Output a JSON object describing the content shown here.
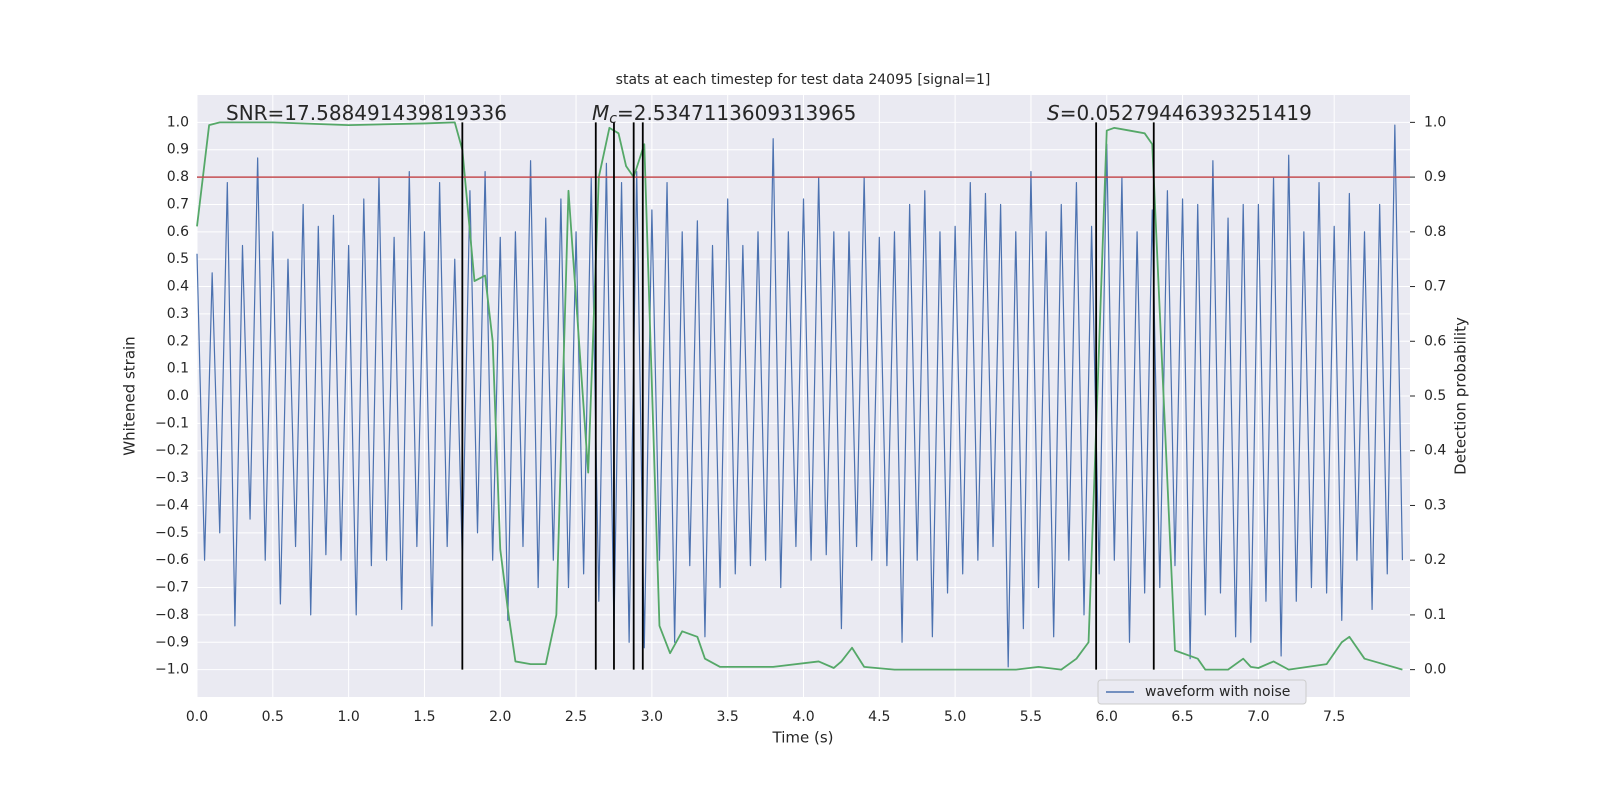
{
  "chart_data": {
    "type": "line",
    "title": "stats at each timestep for test data 24095 [signal=1]",
    "xlabel": "Time (s)",
    "ylabel": "Whitened strain",
    "y2label": "Detection probability",
    "xlim": [
      0,
      8.0
    ],
    "ylim": [
      -1.1,
      1.1
    ],
    "y2lim": [
      -0.05,
      1.05
    ],
    "xticks": [
      {
        "value": 0,
        "label": "0.0"
      },
      {
        "value": 0.5,
        "label": "0.5"
      },
      {
        "value": 1,
        "label": "1.0"
      },
      {
        "value": 1.5,
        "label": "1.5"
      },
      {
        "value": 2,
        "label": "2.0"
      },
      {
        "value": 2.5,
        "label": "2.5"
      },
      {
        "value": 3,
        "label": "3.0"
      },
      {
        "value": 3.5,
        "label": "3.5"
      },
      {
        "value": 4,
        "label": "4.0"
      },
      {
        "value": 4.5,
        "label": "4.5"
      },
      {
        "value": 5,
        "label": "5.0"
      },
      {
        "value": 5.5,
        "label": "5.5"
      },
      {
        "value": 6,
        "label": "6.0"
      },
      {
        "value": 6.5,
        "label": "6.5"
      },
      {
        "value": 7,
        "label": "7.0"
      },
      {
        "value": 7.5,
        "label": "7.5"
      }
    ],
    "yticks": [
      {
        "value": -1,
        "label": "−1.0"
      },
      {
        "value": -0.9,
        "label": "−0.9"
      },
      {
        "value": -0.8,
        "label": "−0.8"
      },
      {
        "value": -0.7,
        "label": "−0.7"
      },
      {
        "value": -0.6,
        "label": "−0.6"
      },
      {
        "value": -0.5,
        "label": "−0.5"
      },
      {
        "value": -0.4,
        "label": "−0.4"
      },
      {
        "value": -0.3,
        "label": "−0.3"
      },
      {
        "value": -0.2,
        "label": "−0.2"
      },
      {
        "value": -0.1,
        "label": "−0.1"
      },
      {
        "value": 0,
        "label": "0.0"
      },
      {
        "value": 0.1,
        "label": "0.1"
      },
      {
        "value": 0.2,
        "label": "0.2"
      },
      {
        "value": 0.3,
        "label": "0.3"
      },
      {
        "value": 0.4,
        "label": "0.4"
      },
      {
        "value": 0.5,
        "label": "0.5"
      },
      {
        "value": 0.6,
        "label": "0.6"
      },
      {
        "value": 0.7,
        "label": "0.7"
      },
      {
        "value": 0.8,
        "label": "0.8"
      },
      {
        "value": 0.9,
        "label": "0.9"
      },
      {
        "value": 1,
        "label": "1.0"
      }
    ],
    "y2ticks": [
      {
        "value": 0,
        "label": "0.0"
      },
      {
        "value": 0.1,
        "label": "0.1"
      },
      {
        "value": 0.2,
        "label": "0.2"
      },
      {
        "value": 0.3,
        "label": "0.3"
      },
      {
        "value": 0.4,
        "label": "0.4"
      },
      {
        "value": 0.5,
        "label": "0.5"
      },
      {
        "value": 0.6,
        "label": "0.6"
      },
      {
        "value": 0.7,
        "label": "0.7"
      },
      {
        "value": 0.8,
        "label": "0.8"
      },
      {
        "value": 0.9,
        "label": "0.9"
      },
      {
        "value": 1,
        "label": "1.0"
      }
    ],
    "grid": true,
    "legend": "lower right",
    "series": [
      {
        "name": "waveform with noise",
        "color": "#4c72b0",
        "x": [
          0,
          0.05,
          0.1,
          0.15,
          0.2,
          0.25,
          0.3,
          0.35,
          0.4,
          0.45,
          0.5,
          0.55,
          0.6,
          0.65,
          0.7,
          0.75,
          0.8,
          0.85,
          0.9,
          0.95,
          1,
          1.05,
          1.1,
          1.15,
          1.2,
          1.25,
          1.3,
          1.35,
          1.4,
          1.45,
          1.5,
          1.55,
          1.6,
          1.65,
          1.7,
          1.75,
          1.8,
          1.85,
          1.9,
          1.95,
          2,
          2.05,
          2.1,
          2.15,
          2.2,
          2.25,
          2.3,
          2.35,
          2.4,
          2.45,
          2.5,
          2.55,
          2.6,
          2.65,
          2.7,
          2.75,
          2.8,
          2.85,
          2.9,
          2.95,
          3,
          3.05,
          3.1,
          3.15,
          3.2,
          3.25,
          3.3,
          3.35,
          3.4,
          3.45,
          3.5,
          3.55,
          3.6,
          3.65,
          3.7,
          3.75,
          3.8,
          3.85,
          3.9,
          3.95,
          4,
          4.05,
          4.1,
          4.15,
          4.2,
          4.25,
          4.3,
          4.35,
          4.4,
          4.45,
          4.5,
          4.55,
          4.6,
          4.65,
          4.7,
          4.75,
          4.8,
          4.85,
          4.9,
          4.95,
          5,
          5.05,
          5.1,
          5.15,
          5.2,
          5.25,
          5.3,
          5.35,
          5.4,
          5.45,
          5.5,
          5.55,
          5.6,
          5.65,
          5.7,
          5.75,
          5.8,
          5.85,
          5.9,
          5.95,
          6,
          6.05,
          6.1,
          6.15,
          6.2,
          6.25,
          6.3,
          6.35,
          6.4,
          6.45,
          6.5,
          6.55,
          6.6,
          6.65,
          6.7,
          6.75,
          6.8,
          6.85,
          6.9,
          6.95,
          7,
          7.05,
          7.1,
          7.15,
          7.2,
          7.25,
          7.3,
          7.35,
          7.4,
          7.45,
          7.5,
          7.55,
          7.6,
          7.65,
          7.7,
          7.75,
          7.8,
          7.85,
          7.9,
          7.95
        ],
        "values": [
          0.52,
          -0.6,
          0.45,
          -0.5,
          0.78,
          -0.84,
          0.55,
          -0.45,
          0.87,
          -0.6,
          0.6,
          -0.76,
          0.5,
          -0.55,
          0.7,
          -0.8,
          0.62,
          -0.58,
          0.66,
          -0.6,
          0.55,
          -0.8,
          0.72,
          -0.62,
          0.8,
          -0.6,
          0.58,
          -0.78,
          0.82,
          -0.55,
          0.6,
          -0.84,
          0.78,
          -0.55,
          0.5,
          -0.6,
          0.75,
          -0.5,
          0.82,
          -0.6,
          0.58,
          -0.82,
          0.6,
          -0.55,
          0.86,
          -0.7,
          0.65,
          -0.6,
          0.72,
          -0.7,
          0.6,
          -0.65,
          0.8,
          -0.75,
          0.85,
          -0.85,
          0.78,
          -0.9,
          0.82,
          -0.92,
          0.68,
          -0.6,
          0.78,
          -0.9,
          0.6,
          -0.62,
          0.64,
          -0.88,
          0.55,
          -0.7,
          0.72,
          -0.65,
          0.55,
          -0.62,
          0.6,
          -0.6,
          0.94,
          -0.7,
          0.6,
          -0.55,
          0.72,
          -0.6,
          0.8,
          -0.58,
          0.6,
          -0.85,
          0.6,
          -0.55,
          0.8,
          -0.6,
          0.58,
          -0.62,
          0.6,
          -0.9,
          0.7,
          -0.6,
          0.75,
          -0.88,
          0.6,
          -0.72,
          0.62,
          -0.65,
          0.78,
          -0.6,
          0.74,
          -0.55,
          0.7,
          -0.99,
          0.6,
          -0.85,
          0.82,
          -0.7,
          0.6,
          -0.88,
          0.7,
          -0.6,
          0.78,
          -0.8,
          0.62,
          -0.65,
          0.92,
          -0.6,
          0.8,
          -0.9,
          0.6,
          -0.72,
          0.68,
          -0.7,
          0.75,
          -0.62,
          0.72,
          -0.96,
          0.7,
          -0.8,
          0.86,
          -0.72,
          0.65,
          -0.88,
          0.7,
          -0.9,
          0.7,
          -0.75,
          0.8,
          -0.95,
          0.88,
          -0.75,
          0.6,
          -0.7,
          0.78,
          -0.72,
          0.62,
          -0.82,
          0.74,
          -0.6,
          0.6,
          -0.78,
          0.7,
          -0.65,
          0.99,
          -0.6
        ]
      },
      {
        "color": "#55a868",
        "axis": "y2",
        "x": [
          0,
          0.08,
          0.15,
          0.5,
          1,
          1.5,
          1.7,
          1.75,
          1.83,
          1.9,
          1.95,
          2,
          2.05,
          2.1,
          2.2,
          2.3,
          2.37,
          2.45,
          2.58,
          2.65,
          2.72,
          2.78,
          2.83,
          2.88,
          2.95,
          3.05,
          3.12,
          3.2,
          3.3,
          3.35,
          3.45,
          3.8,
          4.1,
          4.2,
          4.25,
          4.32,
          4.4,
          4.6,
          5,
          5.4,
          5.55,
          5.7,
          5.8,
          5.88,
          6,
          6.05,
          6.15,
          6.25,
          6.3,
          6.45,
          6.6,
          6.65,
          6.8,
          6.9,
          6.95,
          7,
          7.1,
          7.2,
          7.45,
          7.55,
          7.6,
          7.7,
          7.95
        ],
        "values": [
          0.81,
          0.995,
          1,
          1,
          0.995,
          0.998,
          1,
          0.95,
          0.71,
          0.72,
          0.6,
          0.22,
          0.11,
          0.015,
          0.01,
          0.01,
          0.1,
          0.875,
          0.36,
          0.9,
          0.99,
          0.98,
          0.92,
          0.9,
          0.96,
          0.08,
          0.03,
          0.07,
          0.06,
          0.02,
          0.005,
          0.005,
          0.015,
          0.003,
          0.015,
          0.04,
          0.005,
          0,
          0,
          0,
          0.005,
          0,
          0.02,
          0.05,
          0.985,
          0.99,
          0.985,
          0.98,
          0.96,
          0.035,
          0.02,
          0,
          0,
          0.02,
          0.005,
          0.003,
          0.015,
          0,
          0.01,
          0.05,
          0.06,
          0.02,
          0
        ]
      }
    ],
    "threshold": {
      "value": 0.8,
      "color": "#c44e52"
    },
    "markers": {
      "color": "#000000",
      "x": [
        1.75,
        2.63,
        2.75,
        2.88,
        2.94,
        5.93,
        6.31
      ]
    },
    "annotations": [
      {
        "text": "SNR=17.588491439819336"
      },
      {
        "symbol": "M",
        "subscript": "c",
        "text": "=2.5347113609313965"
      },
      {
        "symbol": "S",
        "text": "=0.05279446393251419"
      }
    ]
  }
}
